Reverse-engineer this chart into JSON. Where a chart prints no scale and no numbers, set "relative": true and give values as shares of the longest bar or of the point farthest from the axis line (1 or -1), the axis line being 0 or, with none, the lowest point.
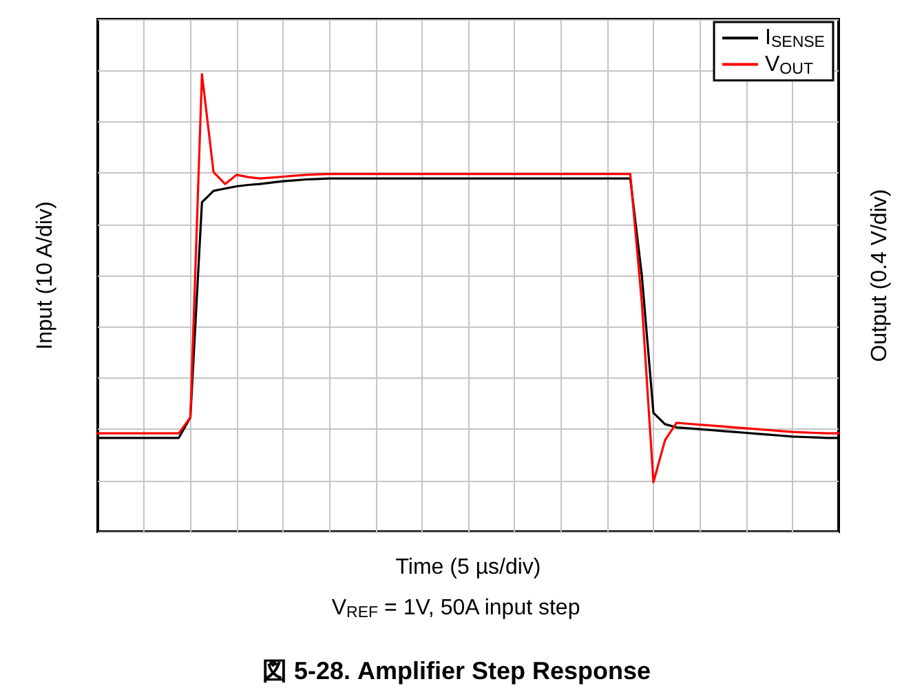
{
  "chart_data": {
    "type": "line",
    "title": "図 5-28. Amplifier Step Response",
    "xlabel": "Time (5 µs/div)",
    "ylabel": "Input (10 A/div)",
    "y2label": "Output (0.4 V/div)",
    "annotations": [
      "V$_{REF}$ = 1V, 50A input step"
    ],
    "relative": true,
    "grid": true,
    "legend": "top right",
    "line_style": "solid",
    "categories": [
      null,
      null,
      null,
      null,
      null,
      null,
      null,
      null,
      null,
      null,
      null,
      null,
      null,
      null,
      null,
      null,
      null,
      null,
      null,
      null,
      null,
      null,
      null,
      null,
      null,
      null,
      null,
      null,
      null,
      null,
      null,
      null,
      null,
      null,
      null,
      null,
      null,
      null,
      null,
      null,
      null,
      null,
      null,
      null,
      null,
      null,
      null,
      null,
      null,
      null,
      null,
      null,
      null,
      null,
      null,
      null,
      null,
      null,
      null,
      null,
      null,
      null,
      null,
      null,
      null
    ],
    "series": [
      {
        "name": "I$_{SENSE}$",
        "color": "#000000",
        "values": [
          0.205,
          0.205,
          0.205,
          0.205,
          0.205,
          0.205,
          0.205,
          0.205,
          0.25,
          0.72,
          0.745,
          0.75,
          0.755,
          0.758,
          0.76,
          0.763,
          0.766,
          0.768,
          0.77,
          0.771,
          0.772,
          0.772,
          0.772,
          0.772,
          0.772,
          0.772,
          0.772,
          0.772,
          0.772,
          0.772,
          0.772,
          0.772,
          0.772,
          0.772,
          0.772,
          0.772,
          0.772,
          0.772,
          0.772,
          0.772,
          0.772,
          0.772,
          0.772,
          0.772,
          0.772,
          0.772,
          0.772,
          0.56,
          0.26,
          0.235,
          0.228,
          0.226,
          0.224,
          0.222,
          0.22,
          0.218,
          0.216,
          0.214,
          0.212,
          0.21,
          0.208,
          0.207,
          0.206,
          0.205,
          0.205
        ]
      },
      {
        "name": "V$_{OUT}$",
        "color": "#ff0000",
        "values": [
          0.215,
          0.215,
          0.215,
          0.215,
          0.215,
          0.215,
          0.215,
          0.215,
          0.25,
          1.0,
          0.786,
          0.76,
          0.78,
          0.775,
          0.772,
          0.774,
          0.776,
          0.778,
          0.78,
          0.781,
          0.782,
          0.782,
          0.782,
          0.782,
          0.782,
          0.782,
          0.782,
          0.782,
          0.782,
          0.782,
          0.782,
          0.782,
          0.782,
          0.782,
          0.782,
          0.782,
          0.782,
          0.782,
          0.782,
          0.782,
          0.782,
          0.782,
          0.782,
          0.782,
          0.782,
          0.782,
          0.782,
          0.5,
          0.108,
          0.2,
          0.238,
          0.236,
          0.234,
          0.232,
          0.23,
          0.228,
          0.226,
          0.224,
          0.222,
          0.22,
          0.218,
          0.217,
          0.216,
          0.215,
          0.215
        ]
      }
    ]
  }
}
